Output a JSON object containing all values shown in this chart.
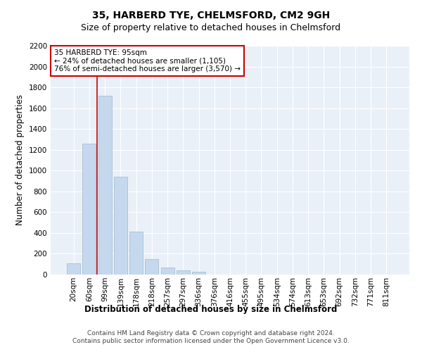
{
  "title": "35, HARBERD TYE, CHELMSFORD, CM2 9GH",
  "subtitle": "Size of property relative to detached houses in Chelmsford",
  "xlabel": "Distribution of detached houses by size in Chelmsford",
  "ylabel": "Number of detached properties",
  "categories": [
    "20sqm",
    "60sqm",
    "99sqm",
    "139sqm",
    "178sqm",
    "218sqm",
    "257sqm",
    "297sqm",
    "336sqm",
    "376sqm",
    "416sqm",
    "455sqm",
    "495sqm",
    "534sqm",
    "574sqm",
    "613sqm",
    "653sqm",
    "692sqm",
    "732sqm",
    "771sqm",
    "811sqm"
  ],
  "values": [
    110,
    1260,
    1720,
    940,
    410,
    150,
    65,
    40,
    25,
    0,
    0,
    0,
    0,
    0,
    0,
    0,
    0,
    0,
    0,
    0,
    0
  ],
  "bar_color": "#c5d8ed",
  "bar_edge_color": "#a0b8d0",
  "vline_position": 1.5,
  "vline_color": "#cc0000",
  "annotation_title": "35 HARBERD TYE: 95sqm",
  "annotation_line1": "← 24% of detached houses are smaller (1,105)",
  "annotation_line2": "76% of semi-detached houses are larger (3,570) →",
  "annotation_box_color": "#cc0000",
  "ylim": [
    0,
    2200
  ],
  "footnote1": "Contains HM Land Registry data © Crown copyright and database right 2024.",
  "footnote2": "Contains public sector information licensed under the Open Government Licence v3.0.",
  "plot_bg_color": "#eaf0f8",
  "title_fontsize": 10,
  "subtitle_fontsize": 9,
  "axis_label_fontsize": 8.5,
  "tick_fontsize": 7.5,
  "annotation_fontsize": 7.5,
  "footnote_fontsize": 6.5
}
